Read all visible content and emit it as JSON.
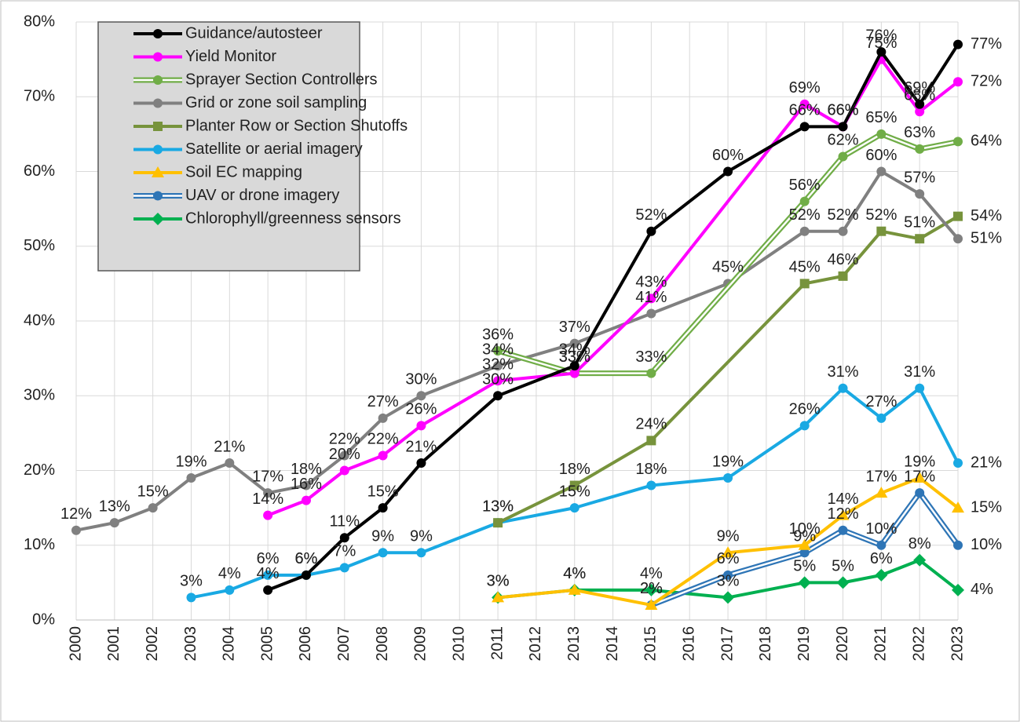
{
  "chart_data": {
    "type": "line",
    "xlim": [
      2000,
      2023
    ],
    "xticks": [
      2000,
      2001,
      2002,
      2003,
      2004,
      2005,
      2006,
      2007,
      2008,
      2009,
      2010,
      2011,
      2012,
      2013,
      2014,
      2015,
      2016,
      2017,
      2018,
      2019,
      2020,
      2021,
      2022,
      2023
    ],
    "ylim": [
      0,
      80
    ],
    "yticks": [
      {
        "value": 0,
        "label": "0%"
      },
      {
        "value": 10,
        "label": "10%"
      },
      {
        "value": 20,
        "label": "20%"
      },
      {
        "value": 30,
        "label": "30%"
      },
      {
        "value": 40,
        "label": "40%"
      },
      {
        "value": 50,
        "label": "50%"
      },
      {
        "value": 60,
        "label": "60%"
      },
      {
        "value": 70,
        "label": "70%"
      },
      {
        "value": 80,
        "label": "80%"
      }
    ],
    "grid": true,
    "legend": "top-left",
    "series": [
      {
        "name": "Guidance/autosteer",
        "color": "#000000",
        "marker": "circle",
        "x": [
          2005,
          2006,
          2007,
          2008,
          2009,
          2011,
          2013,
          2015,
          2017,
          2019,
          2020,
          2021,
          2022,
          2023
        ],
        "values": [
          4,
          6,
          11,
          15,
          21,
          30,
          34,
          52,
          60,
          66,
          66,
          76,
          69,
          77
        ],
        "value_labels": [
          "4%",
          "6%",
          "11%",
          "15%",
          "21%",
          "30%",
          "34%",
          "52%",
          "60%",
          "66%",
          "66%",
          "76%",
          "69%",
          "77%"
        ]
      },
      {
        "name": "Yield Monitor",
        "color": "#ff00ff",
        "marker": "circle",
        "x": [
          2005,
          2006,
          2007,
          2008,
          2009,
          2011,
          2013,
          2015,
          2019,
          2020,
          2021,
          2022,
          2023
        ],
        "values": [
          14,
          16,
          20,
          22,
          26,
          32,
          33,
          43,
          69,
          66,
          75,
          68,
          72
        ],
        "value_labels": [
          "14%",
          "16%",
          "20%",
          "22%",
          "26%",
          "32%",
          "33%",
          "43%",
          "69%",
          "66%",
          "75%",
          "68%",
          "72%"
        ]
      },
      {
        "name": "Sprayer Section Controllers",
        "color": "#70ad47",
        "marker": "circle",
        "line_style": "double",
        "x": [
          2011,
          2013,
          2015,
          2019,
          2020,
          2021,
          2022,
          2023
        ],
        "values": [
          36,
          33,
          33,
          56,
          62,
          65,
          63,
          64
        ],
        "value_labels": [
          "36%",
          "33%",
          "33%",
          "56%",
          "62%",
          "65%",
          "63%",
          "64%"
        ]
      },
      {
        "name": "Grid or zone soil sampling",
        "color": "#808080",
        "marker": "circle",
        "x": [
          2000,
          2001,
          2002,
          2003,
          2004,
          2005,
          2006,
          2007,
          2008,
          2009,
          2011,
          2013,
          2015,
          2017,
          2019,
          2020,
          2021,
          2022,
          2023
        ],
        "values": [
          12,
          13,
          15,
          19,
          21,
          17,
          18,
          22,
          27,
          30,
          34,
          37,
          41,
          45,
          52,
          52,
          60,
          57,
          51
        ],
        "value_labels": [
          "12%",
          "13%",
          "15%",
          "19%",
          "21%",
          "17%",
          "18%",
          "22%",
          "27%",
          "30%",
          "34%",
          "37%",
          "41%",
          "45%",
          "52%",
          "52%",
          "60%",
          "57%",
          "51%"
        ]
      },
      {
        "name": "Planter Row or Section Shutoffs",
        "color": "#77933c",
        "marker": "square",
        "x": [
          2011,
          2013,
          2015,
          2019,
          2020,
          2021,
          2022,
          2023
        ],
        "values": [
          13,
          18,
          24,
          45,
          46,
          52,
          51,
          54
        ],
        "value_labels": [
          "13%",
          "18%",
          "24%",
          "45%",
          "46%",
          "52%",
          "51%",
          "54%"
        ]
      },
      {
        "name": "Satellite or aerial imagery",
        "color": "#19a9e3",
        "marker": "circle",
        "x": [
          2003,
          2004,
          2005,
          2006,
          2007,
          2008,
          2009,
          2011,
          2013,
          2015,
          2017,
          2019,
          2020,
          2021,
          2022,
          2023
        ],
        "values": [
          3,
          4,
          6,
          6,
          7,
          9,
          9,
          13,
          15,
          18,
          19,
          26,
          31,
          27,
          31,
          21
        ],
        "value_labels": [
          "3%",
          "4%",
          "6%",
          "6%",
          "7%",
          "9%",
          "9%",
          "13%",
          "15%",
          "18%",
          "19%",
          "26%",
          "31%",
          "27%",
          "31%",
          "21%"
        ]
      },
      {
        "name": "Soil EC mapping",
        "color": "#ffc000",
        "marker": "triangle",
        "x": [
          2011,
          2013,
          2015,
          2017,
          2019,
          2020,
          2021,
          2022,
          2023
        ],
        "values": [
          3,
          4,
          2,
          9,
          10,
          14,
          17,
          19,
          15
        ],
        "value_labels": [
          "3%",
          "4%",
          "2%",
          "9%",
          "10%",
          "14%",
          "17%",
          "19%",
          "15%"
        ]
      },
      {
        "name": "UAV or drone imagery",
        "color": "#2e75b6",
        "marker": "circle",
        "line_style": "double",
        "x": [
          2015,
          2017,
          2019,
          2020,
          2021,
          2022,
          2023
        ],
        "values": [
          2,
          6,
          9,
          12,
          10,
          17,
          10
        ],
        "value_labels": [
          "2%",
          "6%",
          "9%",
          "12%",
          "10%",
          "17%",
          "10%"
        ]
      },
      {
        "name": "Chlorophyll/greenness sensors",
        "color": "#00b050",
        "marker": "diamond",
        "x": [
          2011,
          2013,
          2015,
          2017,
          2019,
          2020,
          2021,
          2022,
          2023
        ],
        "values": [
          3,
          4,
          4,
          3,
          5,
          5,
          6,
          8,
          4
        ],
        "value_labels": [
          "3%",
          "4%",
          "4%",
          "3%",
          "5%",
          "5%",
          "6%",
          "8%",
          "4%"
        ]
      }
    ]
  }
}
